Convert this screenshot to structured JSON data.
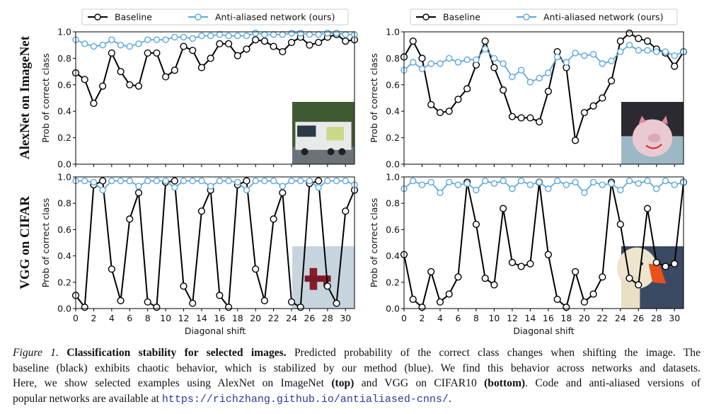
{
  "rows": [
    "AlexNet on ImageNet",
    "VGG on CIFAR"
  ],
  "colors": {
    "baseline": "#000000",
    "antialiased": "#5fa8dc"
  },
  "chart_data": [
    {
      "type": "line",
      "panel": "top-left",
      "row_label": "AlexNet on ImageNet",
      "ylabel": "Prob of correct class",
      "xlabel": "",
      "xlim": [
        0,
        31
      ],
      "ylim": [
        0,
        1
      ],
      "yticks": [
        "0.0",
        "0.2",
        "0.4",
        "0.6",
        "0.8",
        "1.0"
      ],
      "xticks": [],
      "legend": {
        "placement": "top",
        "entries": [
          "Baseline",
          "Anti-aliased network (ours)"
        ]
      },
      "inset_icon": "garbage-truck-photo",
      "x": [
        0,
        1,
        2,
        3,
        4,
        5,
        6,
        7,
        8,
        9,
        10,
        11,
        12,
        13,
        14,
        15,
        16,
        17,
        18,
        19,
        20,
        21,
        22,
        23,
        24,
        25,
        26,
        27,
        28,
        29,
        30,
        31
      ],
      "series": [
        {
          "name": "Baseline",
          "values": [
            0.69,
            0.64,
            0.46,
            0.59,
            0.84,
            0.7,
            0.6,
            0.59,
            0.84,
            0.84,
            0.66,
            0.71,
            0.89,
            0.86,
            0.73,
            0.8,
            0.91,
            0.91,
            0.82,
            0.87,
            0.94,
            0.93,
            0.89,
            0.85,
            0.92,
            0.96,
            0.9,
            0.92,
            0.96,
            0.98,
            0.93,
            0.94
          ]
        },
        {
          "name": "Anti-aliased network (ours)",
          "values": [
            0.94,
            0.91,
            0.89,
            0.9,
            0.94,
            0.9,
            0.89,
            0.91,
            0.94,
            0.94,
            0.94,
            0.96,
            0.96,
            0.95,
            0.97,
            0.97,
            0.98,
            0.97,
            0.97,
            0.97,
            0.99,
            0.98,
            0.98,
            0.98,
            0.99,
            0.99,
            0.98,
            0.98,
            0.99,
            0.99,
            0.98,
            0.98
          ]
        }
      ]
    },
    {
      "type": "line",
      "panel": "top-right",
      "ylabel": "Prob of correct class",
      "xlabel": "",
      "xlim": [
        0,
        31
      ],
      "ylim": [
        0,
        1
      ],
      "yticks": [
        "0.0",
        "0.2",
        "0.4",
        "0.6",
        "0.8",
        "1.0"
      ],
      "xticks": [],
      "legend": {
        "placement": "top",
        "entries": [
          "Baseline",
          "Anti-aliased network (ours)"
        ]
      },
      "inset_icon": "piggy-bank-photo",
      "x": [
        0,
        1,
        2,
        3,
        4,
        5,
        6,
        7,
        8,
        9,
        10,
        11,
        12,
        13,
        14,
        15,
        16,
        17,
        18,
        19,
        20,
        21,
        22,
        23,
        24,
        25,
        26,
        27,
        28,
        29,
        30,
        31
      ],
      "series": [
        {
          "name": "Baseline",
          "values": [
            0.81,
            0.93,
            0.8,
            0.45,
            0.39,
            0.4,
            0.49,
            0.57,
            0.75,
            0.93,
            0.73,
            0.56,
            0.36,
            0.35,
            0.35,
            0.32,
            0.55,
            0.85,
            0.73,
            0.18,
            0.39,
            0.44,
            0.5,
            0.63,
            0.93,
            0.99,
            0.95,
            0.93,
            0.87,
            0.84,
            0.74,
            0.85
          ]
        },
        {
          "name": "Anti-aliased network (ours)",
          "values": [
            0.71,
            0.77,
            0.72,
            0.76,
            0.76,
            0.8,
            0.77,
            0.79,
            0.79,
            0.87,
            0.8,
            0.76,
            0.66,
            0.71,
            0.62,
            0.65,
            0.69,
            0.81,
            0.77,
            0.84,
            0.82,
            0.83,
            0.76,
            0.78,
            0.85,
            0.9,
            0.86,
            0.86,
            0.85,
            0.85,
            0.82,
            0.85
          ]
        }
      ]
    },
    {
      "type": "line",
      "panel": "bottom-left",
      "row_label": "VGG on CIFAR",
      "ylabel": "Prob of correct class",
      "xlabel": "Diagonal shift",
      "xlim": [
        0,
        31
      ],
      "ylim": [
        0,
        1
      ],
      "yticks": [
        "0.0",
        "0.2",
        "0.4",
        "0.6",
        "0.8",
        "1.0"
      ],
      "xticks": [
        "0",
        "2",
        "4",
        "6",
        "8",
        "10",
        "12",
        "14",
        "16",
        "18",
        "20",
        "22",
        "24",
        "26",
        "28",
        "30"
      ],
      "inset_icon": "airplane-photo",
      "x": [
        0,
        1,
        2,
        3,
        4,
        5,
        6,
        7,
        8,
        9,
        10,
        11,
        12,
        13,
        14,
        15,
        16,
        17,
        18,
        19,
        20,
        21,
        22,
        23,
        24,
        25,
        26,
        27,
        28,
        29,
        30,
        31
      ],
      "series": [
        {
          "name": "Baseline",
          "values": [
            0.1,
            0.01,
            0.94,
            0.97,
            0.3,
            0.06,
            0.68,
            0.88,
            0.05,
            0.01,
            0.96,
            0.97,
            0.17,
            0.04,
            0.74,
            0.9,
            0.1,
            0.01,
            0.94,
            0.97,
            0.3,
            0.06,
            0.68,
            0.88,
            0.05,
            0.01,
            0.95,
            0.97,
            0.17,
            0.04,
            0.74,
            0.9
          ]
        },
        {
          "name": "Anti-aliased network (ours)",
          "values": [
            0.97,
            0.97,
            0.96,
            0.9,
            0.97,
            0.97,
            0.97,
            0.93,
            0.97,
            0.97,
            0.97,
            0.92,
            0.97,
            0.97,
            0.97,
            0.93,
            0.97,
            0.97,
            0.96,
            0.9,
            0.97,
            0.97,
            0.97,
            0.93,
            0.97,
            0.97,
            0.97,
            0.92,
            0.97,
            0.97,
            0.97,
            0.94
          ]
        }
      ]
    },
    {
      "type": "line",
      "panel": "bottom-right",
      "ylabel": "Prob of correct class",
      "xlabel": "Diagonal shift",
      "xlim": [
        0,
        31
      ],
      "ylim": [
        0,
        1
      ],
      "yticks": [
        "0.0",
        "0.2",
        "0.4",
        "0.6",
        "0.8",
        "1.0"
      ],
      "xticks": [
        "0",
        "2",
        "4",
        "6",
        "8",
        "10",
        "12",
        "14",
        "16",
        "18",
        "20",
        "22",
        "24",
        "26",
        "28",
        "30"
      ],
      "inset_icon": "duck-photo",
      "x": [
        0,
        1,
        2,
        3,
        4,
        5,
        6,
        7,
        8,
        9,
        10,
        11,
        12,
        13,
        14,
        15,
        16,
        17,
        18,
        19,
        20,
        21,
        22,
        23,
        24,
        25,
        26,
        27,
        28,
        29,
        30,
        31
      ],
      "series": [
        {
          "name": "Baseline",
          "values": [
            0.41,
            0.07,
            0.01,
            0.28,
            0.05,
            0.11,
            0.24,
            0.96,
            0.64,
            0.23,
            0.18,
            0.76,
            0.35,
            0.32,
            0.34,
            0.96,
            0.41,
            0.07,
            0.01,
            0.28,
            0.05,
            0.11,
            0.24,
            0.96,
            0.64,
            0.23,
            0.18,
            0.76,
            0.35,
            0.32,
            0.34,
            0.96
          ]
        },
        {
          "name": "Anti-aliased network (ours)",
          "values": [
            0.91,
            0.97,
            0.94,
            0.96,
            0.88,
            0.96,
            0.94,
            0.95,
            0.9,
            0.97,
            0.95,
            0.97,
            0.91,
            0.97,
            0.94,
            0.96,
            0.91,
            0.97,
            0.94,
            0.96,
            0.88,
            0.96,
            0.94,
            0.95,
            0.9,
            0.97,
            0.95,
            0.97,
            0.91,
            0.97,
            0.94,
            0.96
          ]
        }
      ]
    }
  ],
  "caption": {
    "label": "Figure 1.",
    "title": "Classification stability for selected images.",
    "line1": " Predicted probability of the correct class changes when shifting the image. The",
    "line2": "baseline (black) exhibits chaotic behavior, which is stabilized by our method (blue). We find this behavior across networks and datasets.",
    "line3a": "Here, we show selected examples using AlexNet on ImageNet ",
    "line3b": "(top)",
    "line3c": " and VGG on CIFAR10 ",
    "line3d": "(bottom)",
    "line3e": ". Code and anti-aliased versions of",
    "line4a": "popular networks are available at ",
    "url": "https://richzhang.github.io/antialiased-cnns/",
    "line4b": "."
  }
}
